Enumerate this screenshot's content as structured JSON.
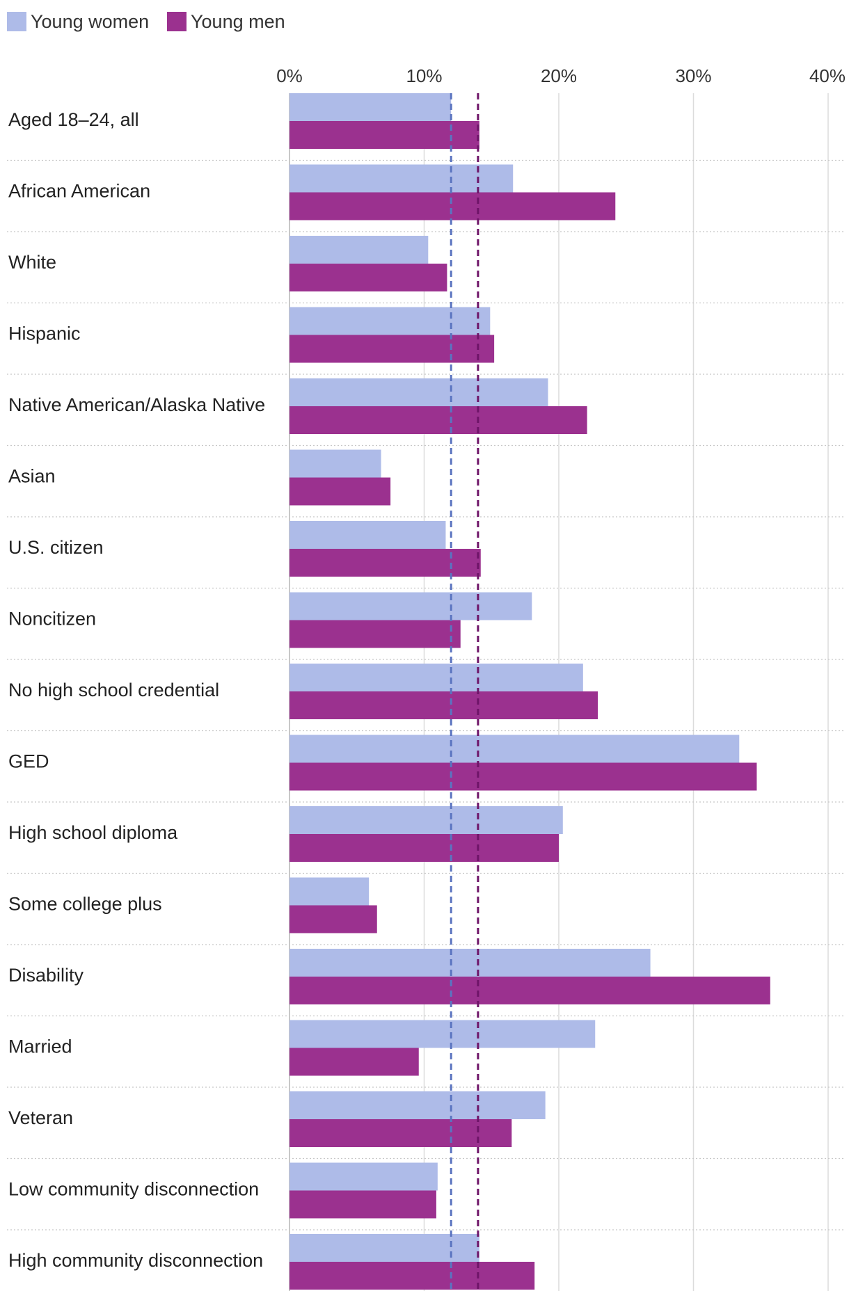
{
  "chart_data": {
    "type": "bar",
    "orientation": "horizontal",
    "title": "",
    "xlabel": "",
    "ylabel": "",
    "xlim": [
      0,
      40
    ],
    "x_ticks": [
      "0%",
      "10%",
      "20%",
      "30%",
      "40%"
    ],
    "legend_position": "top-left",
    "grid": true,
    "colors": {
      "women": "#aebbe8",
      "men": "#9b318f",
      "women_ref": "#5b74c0",
      "men_ref": "#6e1468"
    },
    "categories": [
      "Aged 18–24, all",
      "African American",
      "White",
      "Hispanic",
      "Native American/Alaska Native",
      "Asian",
      "U.S. citizen",
      "Noncitizen",
      "No high school credential",
      "GED",
      "High school diploma",
      "Some college plus",
      "Disability",
      "Married",
      "Veteran",
      "Low community disconnection",
      "High community disconnection"
    ],
    "series": [
      {
        "name": "Young women",
        "values": [
          12.0,
          16.6,
          10.3,
          14.9,
          19.2,
          6.8,
          11.6,
          18.0,
          21.8,
          33.4,
          20.3,
          5.9,
          26.8,
          22.7,
          19.0,
          11.0,
          14.1
        ]
      },
      {
        "name": "Young men",
        "values": [
          14.1,
          24.2,
          11.7,
          15.2,
          22.1,
          7.5,
          14.2,
          12.7,
          22.9,
          34.7,
          20.0,
          6.5,
          35.7,
          9.6,
          16.5,
          10.9,
          18.2
        ]
      }
    ],
    "reference_lines": [
      {
        "series": "Young women",
        "value": 12.0,
        "style": "dashed"
      },
      {
        "series": "Young men",
        "value": 14.0,
        "style": "dashed"
      }
    ]
  }
}
